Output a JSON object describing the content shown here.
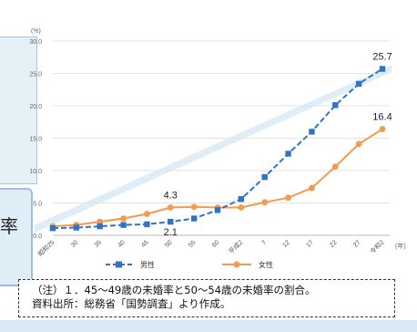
{
  "behind_text": "率",
  "note": {
    "line1": "（注）１．45～49歳の未婚率と50～54歳の未婚率の割合。",
    "line2": "資料出所：総務省「国勢調査」より作成。"
  },
  "colors": {
    "male": "#2f74c4",
    "female": "#f39a4c",
    "grid": "#e3e3e3",
    "axis": "#bbbbbb"
  },
  "chart_data": {
    "type": "line",
    "y_unit": "(%)",
    "x_unit": "(年)",
    "ylim": [
      0,
      30
    ],
    "yticks": [
      "0.0",
      "5.0",
      "10.0",
      "15.0",
      "20.0",
      "25.0",
      "30.0"
    ],
    "categories": [
      "昭和25",
      "30",
      "35",
      "40",
      "45",
      "50",
      "55",
      "60",
      "平成2",
      "7",
      "12",
      "17",
      "22",
      "27",
      "令和2"
    ],
    "series": [
      {
        "name": "男性",
        "style": "dashed-square",
        "values": [
          1.1,
          1.2,
          1.4,
          1.6,
          1.7,
          2.1,
          2.6,
          3.9,
          5.6,
          9.0,
          12.6,
          16.0,
          20.1,
          23.4,
          25.7
        ]
      },
      {
        "name": "女性",
        "style": "solid-circle",
        "values": [
          1.4,
          1.6,
          2.1,
          2.6,
          3.3,
          4.3,
          4.4,
          4.3,
          4.3,
          5.1,
          5.8,
          7.3,
          10.6,
          14.1,
          16.4
        ]
      }
    ],
    "annotations": [
      {
        "series": 0,
        "index": 5,
        "text": "2.1",
        "pos": "below"
      },
      {
        "series": 1,
        "index": 5,
        "text": "4.3",
        "pos": "above"
      },
      {
        "series": 0,
        "index": 14,
        "text": "25.7",
        "pos": "above"
      },
      {
        "series": 1,
        "index": 14,
        "text": "16.4",
        "pos": "above"
      }
    ],
    "legend_position": "bottom-center",
    "grid": true
  }
}
